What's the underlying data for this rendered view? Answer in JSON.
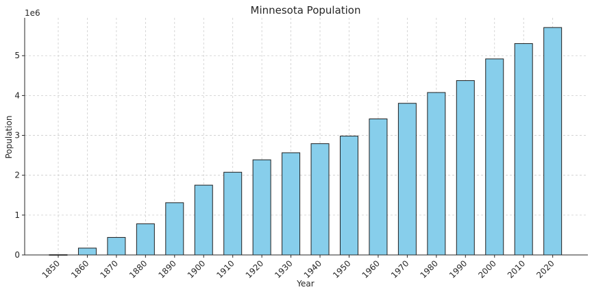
{
  "chart_data": {
    "type": "bar",
    "title": "Minnesota Population",
    "xlabel": "Year",
    "ylabel": "Population",
    "y_offset_label": "1e6",
    "categories": [
      "1850",
      "1860",
      "1870",
      "1880",
      "1890",
      "1900",
      "1910",
      "1920",
      "1930",
      "1940",
      "1950",
      "1960",
      "1970",
      "1980",
      "1990",
      "2000",
      "2010",
      "2020"
    ],
    "values": [
      6077,
      172023,
      439706,
      780773,
      1310283,
      1751394,
      2075708,
      2387125,
      2563953,
      2792300,
      2982483,
      3413864,
      3804971,
      4075970,
      4375099,
      4919479,
      5303925,
      5706494
    ],
    "ylim": [
      0,
      5950000
    ],
    "yticks": [
      0,
      1000000,
      2000000,
      3000000,
      4000000,
      5000000
    ],
    "ytick_labels": [
      "0",
      "1",
      "2",
      "3",
      "4",
      "5"
    ],
    "bar_color": "#87ceeb",
    "edge_color": "#1f1f1f",
    "grid": true,
    "x_tick_rotation": 45
  }
}
